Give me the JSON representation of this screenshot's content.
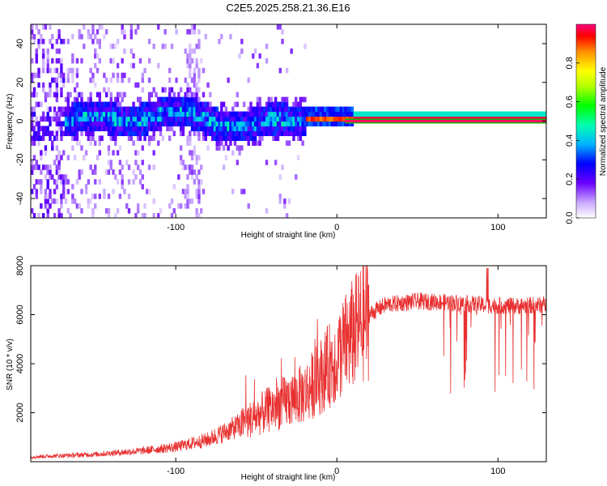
{
  "title": "C2E5.2025.258.21.36.E16",
  "chart_data": [
    {
      "type": "heatmap",
      "xlabel": "Height of straight line (km)",
      "ylabel": "Frequency (Hz)",
      "xlim": [
        -190,
        130
      ],
      "ylim": [
        -50,
        50
      ],
      "x_ticks": [
        -100,
        0,
        100
      ],
      "y_ticks": [
        -40,
        -20,
        0,
        20,
        40
      ],
      "colorbar": {
        "label": "Normalized spectral amplitude",
        "range": [
          0,
          1
        ],
        "ticks": [
          "0.0",
          "0.2",
          "0.4",
          "0.6",
          "0.8"
        ],
        "tick_values": [
          0,
          0.2,
          0.4,
          0.6,
          0.8
        ]
      },
      "description_bands": [
        {
          "x_from": -190,
          "x_to": -170,
          "pattern": "broad scatter"
        },
        {
          "x_from": -170,
          "x_to": -20,
          "pattern": "band near 0 Hz, width ~±8 Hz"
        },
        {
          "x_from": -20,
          "x_to": 130,
          "pattern": "narrow line at 0 Hz, amplitude ~1"
        }
      ]
    },
    {
      "type": "line",
      "xlabel": "Height of straight line (km)",
      "ylabel": "SNR (10 * v/v)",
      "xlim": [
        -190,
        130
      ],
      "ylim": [
        0,
        8000
      ],
      "x_ticks": [
        -100,
        0,
        100
      ],
      "y_ticks": [
        2000,
        4000,
        6000,
        8000
      ],
      "color": "#e83030",
      "profile": [
        {
          "x": -190,
          "y": 200
        },
        {
          "x": -150,
          "y": 300
        },
        {
          "x": -120,
          "y": 450
        },
        {
          "x": -100,
          "y": 600
        },
        {
          "x": -80,
          "y": 900
        },
        {
          "x": -60,
          "y": 1500
        },
        {
          "x": -40,
          "y": 2200
        },
        {
          "x": -20,
          "y": 2800
        },
        {
          "x": -10,
          "y": 3500
        },
        {
          "x": 0,
          "y": 4300
        },
        {
          "x": 10,
          "y": 5200
        },
        {
          "x": 20,
          "y": 6000
        },
        {
          "x": 30,
          "y": 6400
        },
        {
          "x": 50,
          "y": 6550
        },
        {
          "x": 70,
          "y": 6500
        },
        {
          "x": 90,
          "y": 6400
        },
        {
          "x": 110,
          "y": 6350
        },
        {
          "x": 130,
          "y": 6400
        }
      ]
    }
  ]
}
